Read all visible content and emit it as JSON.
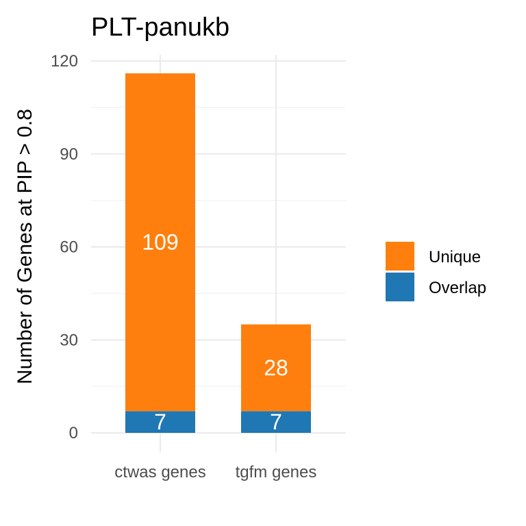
{
  "chart_data": {
    "type": "bar",
    "stacked": true,
    "title": "PLT-panukb",
    "xlabel": "",
    "ylabel": "Number of Genes at PIP > 0.8",
    "categories": [
      "ctwas genes",
      "tgfm genes"
    ],
    "series": [
      {
        "name": "Overlap",
        "values": [
          7,
          7
        ],
        "color": "#1f77b4"
      },
      {
        "name": "Unique",
        "values": [
          109,
          28
        ],
        "color": "#ff7f0e"
      }
    ],
    "ylim": [
      0,
      120
    ],
    "yticks": [
      0,
      30,
      60,
      90,
      120
    ],
    "grid": true,
    "legend": {
      "placement": "right",
      "order": [
        "Unique",
        "Overlap"
      ]
    },
    "data_labels": true
  }
}
